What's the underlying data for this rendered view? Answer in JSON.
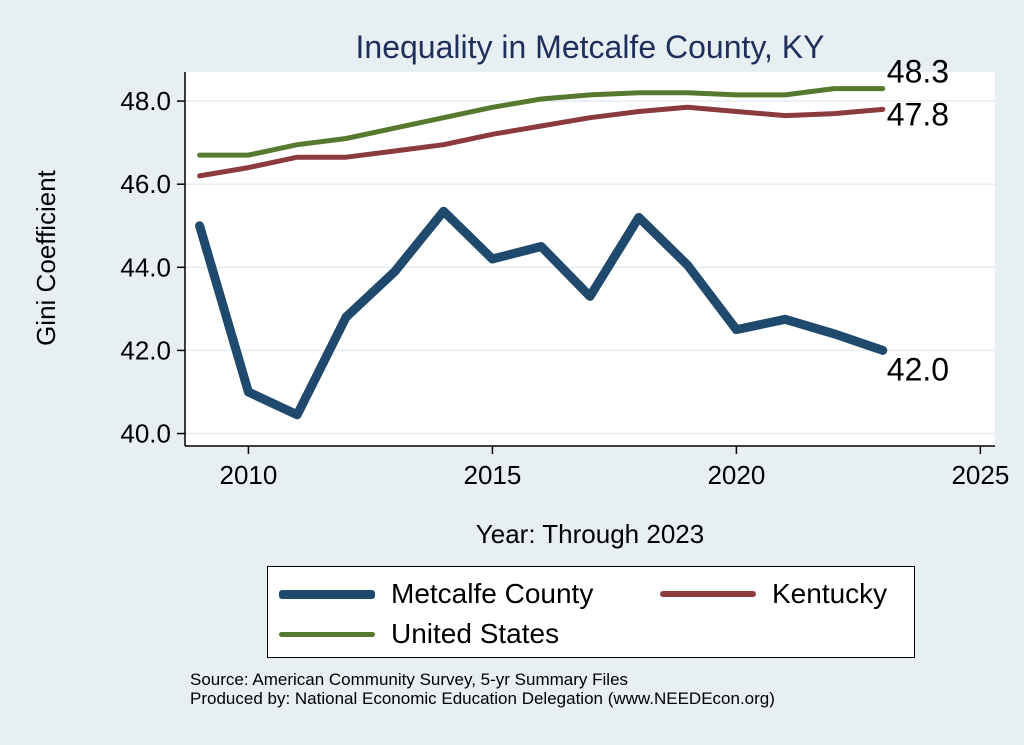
{
  "chart_data": {
    "type": "line",
    "title": "Inequality in Metcalfe County, KY",
    "xlabel": "Year: Through 2023",
    "ylabel": "Gini Coefficient",
    "xlim": [
      2008.7,
      2025.3
    ],
    "ylim": [
      39.7,
      48.7
    ],
    "xticks": [
      2010,
      2015,
      2020,
      2025
    ],
    "yticks": [
      40.0,
      42.0,
      44.0,
      46.0,
      48.0
    ],
    "ytick_labels": [
      "40.0",
      "42.0",
      "44.0",
      "46.0",
      "48.0"
    ],
    "grid": "horizontal",
    "x": [
      2009,
      2010,
      2011,
      2012,
      2013,
      2014,
      2015,
      2016,
      2017,
      2018,
      2019,
      2020,
      2021,
      2022,
      2023
    ],
    "series": [
      {
        "name": "Metcalfe County",
        "color": "#1f4a6e",
        "values": [
          45.0,
          41.0,
          40.45,
          42.8,
          43.9,
          45.35,
          44.2,
          44.5,
          43.3,
          45.2,
          44.05,
          42.5,
          42.75,
          42.4,
          42.0
        ],
        "end_label": "42.0"
      },
      {
        "name": "Kentucky",
        "color": "#8b3a3e",
        "values": [
          46.2,
          46.4,
          46.65,
          46.65,
          46.8,
          46.95,
          47.2,
          47.4,
          47.6,
          47.75,
          47.85,
          47.75,
          47.65,
          47.7,
          47.8
        ],
        "end_label": "47.8"
      },
      {
        "name": "United States",
        "color": "#56792f",
        "values": [
          46.7,
          46.7,
          46.95,
          47.1,
          47.35,
          47.6,
          47.85,
          48.05,
          48.15,
          48.2,
          48.2,
          48.15,
          48.15,
          48.3,
          48.3
        ],
        "end_label": "48.3"
      }
    ],
    "legend_position": "bottom"
  },
  "legend": {
    "items": [
      {
        "label": "Metcalfe County",
        "color": "#1f4a6e"
      },
      {
        "label": "Kentucky",
        "color": "#8b3a3e"
      },
      {
        "label": "United States",
        "color": "#56792f"
      }
    ]
  },
  "source": {
    "line1": "Source: American Community Survey, 5-yr Summary Files",
    "line2": "Produced by: National Economic Education Delegation (www.NEEDEcon.org)"
  }
}
